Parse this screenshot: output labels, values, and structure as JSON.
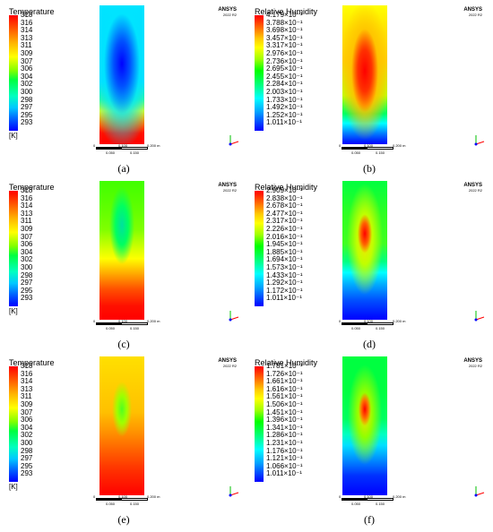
{
  "panels": [
    {
      "id": "a",
      "label": "(a)",
      "legend_title": "Temperature",
      "ticks": [
        "318",
        "316",
        "314",
        "313",
        "311",
        "309",
        "307",
        "306",
        "304",
        "302",
        "300",
        "298",
        "297",
        "295",
        "293"
      ],
      "unit": "[K]",
      "brand": "ANSYS",
      "brand_sub": "2022 R2",
      "scale_ticks": [
        "0",
        "0.100",
        "0.050",
        "0.150",
        "0.200 m"
      ]
    },
    {
      "id": "b",
      "label": "(b)",
      "legend_title": "Relative Humidity",
      "ticks": [
        "4.179×10⁻¹",
        "3.788×10⁻¹",
        "3.698×10⁻¹",
        "3.457×10⁻¹",
        "3.317×10⁻¹",
        "2.976×10⁻¹",
        "2.736×10⁻¹",
        "2.695×10⁻¹",
        "2.455×10⁻¹",
        "2.284×10⁻¹",
        "2.003×10⁻¹",
        "1.733×10⁻¹",
        "1.492×10⁻¹",
        "1.252×10⁻¹",
        "1.011×10⁻¹"
      ],
      "unit": "",
      "brand": "ANSYS",
      "brand_sub": "2022 R2",
      "scale_ticks": [
        "0",
        "0.100",
        "0.050",
        "0.150",
        "0.200 m"
      ]
    },
    {
      "id": "c",
      "label": "(c)",
      "legend_title": "Temperature",
      "ticks": [
        "318",
        "316",
        "314",
        "313",
        "311",
        "309",
        "307",
        "306",
        "304",
        "302",
        "300",
        "298",
        "297",
        "295",
        "293"
      ],
      "unit": "[K]",
      "brand": "ANSYS",
      "brand_sub": "2022 R2",
      "scale_ticks": [
        "0",
        "0.100",
        "0.050",
        "0.150",
        "0.200 m"
      ]
    },
    {
      "id": "d",
      "label": "(d)",
      "legend_title": "Relative Humidity",
      "ticks": [
        "2.909×10⁻¹",
        "2.838×10⁻¹",
        "2.678×10⁻¹",
        "2.477×10⁻¹",
        "2.317×10⁻¹",
        "2.226×10⁻¹",
        "2.016×10⁻¹",
        "1.945×10⁻¹",
        "1.885×10⁻¹",
        "1.694×10⁻¹",
        "1.573×10⁻¹",
        "1.433×10⁻¹",
        "1.292×10⁻¹",
        "1.172×10⁻¹",
        "1.011×10⁻¹"
      ],
      "unit": "",
      "brand": "ANSYS",
      "brand_sub": "2022 R2",
      "scale_ticks": [
        "0",
        "0.100",
        "0.050",
        "0.150",
        "0.200 m"
      ]
    },
    {
      "id": "e",
      "label": "(e)",
      "legend_title": "Temperature",
      "ticks": [
        "318",
        "316",
        "314",
        "313",
        "311",
        "309",
        "307",
        "306",
        "304",
        "302",
        "300",
        "298",
        "297",
        "295",
        "293"
      ],
      "unit": "[K]",
      "brand": "ANSYS",
      "brand_sub": "2022 R2",
      "scale_ticks": [
        "0",
        "0.100",
        "0.050",
        "0.150",
        "0.200 m"
      ]
    },
    {
      "id": "f",
      "label": "(f)",
      "legend_title": "Relative Humidity",
      "ticks": [
        "1.781×10⁻¹",
        "1.726×10⁻¹",
        "1.661×10⁻¹",
        "1.616×10⁻¹",
        "1.561×10⁻¹",
        "1.506×10⁻¹",
        "1.451×10⁻¹",
        "1.396×10⁻¹",
        "1.341×10⁻¹",
        "1.286×10⁻¹",
        "1.231×10⁻¹",
        "1.176×10⁻¹",
        "1.121×10⁻¹",
        "1.066×10⁻¹",
        "1.011×10⁻¹"
      ],
      "unit": "",
      "brand": "ANSYS",
      "brand_sub": "2022 R2",
      "scale_ticks": [
        "0",
        "0.100",
        "0.050",
        "0.150",
        "0.200 m"
      ]
    }
  ],
  "colors": {
    "axis_x": "#ff0000",
    "axis_y": "#00c000",
    "axis_z": "#0000ff"
  }
}
